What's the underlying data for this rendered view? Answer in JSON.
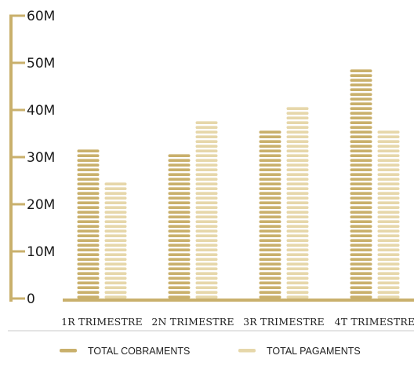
{
  "chart_data": {
    "type": "bar",
    "categories": [
      "1r trimestre",
      "2n trimestre",
      "3r trimestre",
      "4t trimestre"
    ],
    "category_display": [
      "1R TRIMESTRE",
      "2N TRIMESTRE",
      "3R TRIMESTRE",
      "4T TRIMESTRE"
    ],
    "series": [
      {
        "name": "TOTAL COBRAMENTS",
        "color": "#c9b06c",
        "values": [
          32.5,
          31,
          36.2,
          49
        ]
      },
      {
        "name": "TOTAL PAGAMENTS",
        "color": "#e6d7aa",
        "values": [
          25,
          38.5,
          41,
          35.7
        ]
      }
    ],
    "yticks": [
      "0",
      "10M",
      "20M",
      "30M",
      "40M",
      "50M",
      "60M"
    ],
    "ylim": [
      0,
      60
    ],
    "axis_color": "#c9b06c",
    "divider_color": "#c8c8c8",
    "legend_position": "bottom",
    "grid": false
  }
}
